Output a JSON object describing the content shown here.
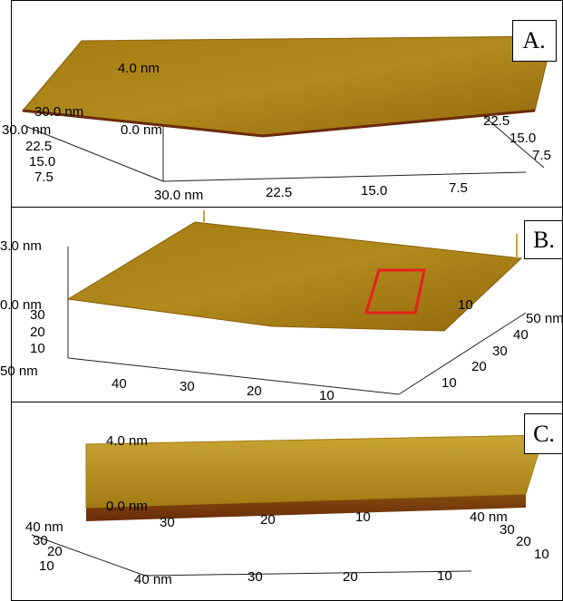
{
  "panels": [
    {
      "label": "A.",
      "axis_labels": [
        "4.0 nm",
        "30.0 nm",
        "0.0 nm",
        "30.0 nm",
        "22.5",
        "15.0",
        "7.5",
        "30.0 nm",
        "22.5",
        "15.0",
        "7.5",
        "22.5",
        "15.0",
        "7.5"
      ]
    },
    {
      "label": "B.",
      "axis_labels": [
        "3.0 nm",
        "0.0 nm",
        "30",
        "20",
        "10",
        "50 nm",
        "40",
        "30",
        "20",
        "10",
        "10",
        "50 nm",
        "40",
        "30",
        "20",
        "10"
      ]
    },
    {
      "label": "C.",
      "axis_labels": [
        "4.0 nm",
        "0.0 nm",
        "40 nm",
        "30",
        "20",
        "10",
        "40 nm",
        "30",
        "20",
        "10",
        "30",
        "20",
        "10",
        "40 nm",
        "30",
        "20",
        "10"
      ]
    }
  ]
}
